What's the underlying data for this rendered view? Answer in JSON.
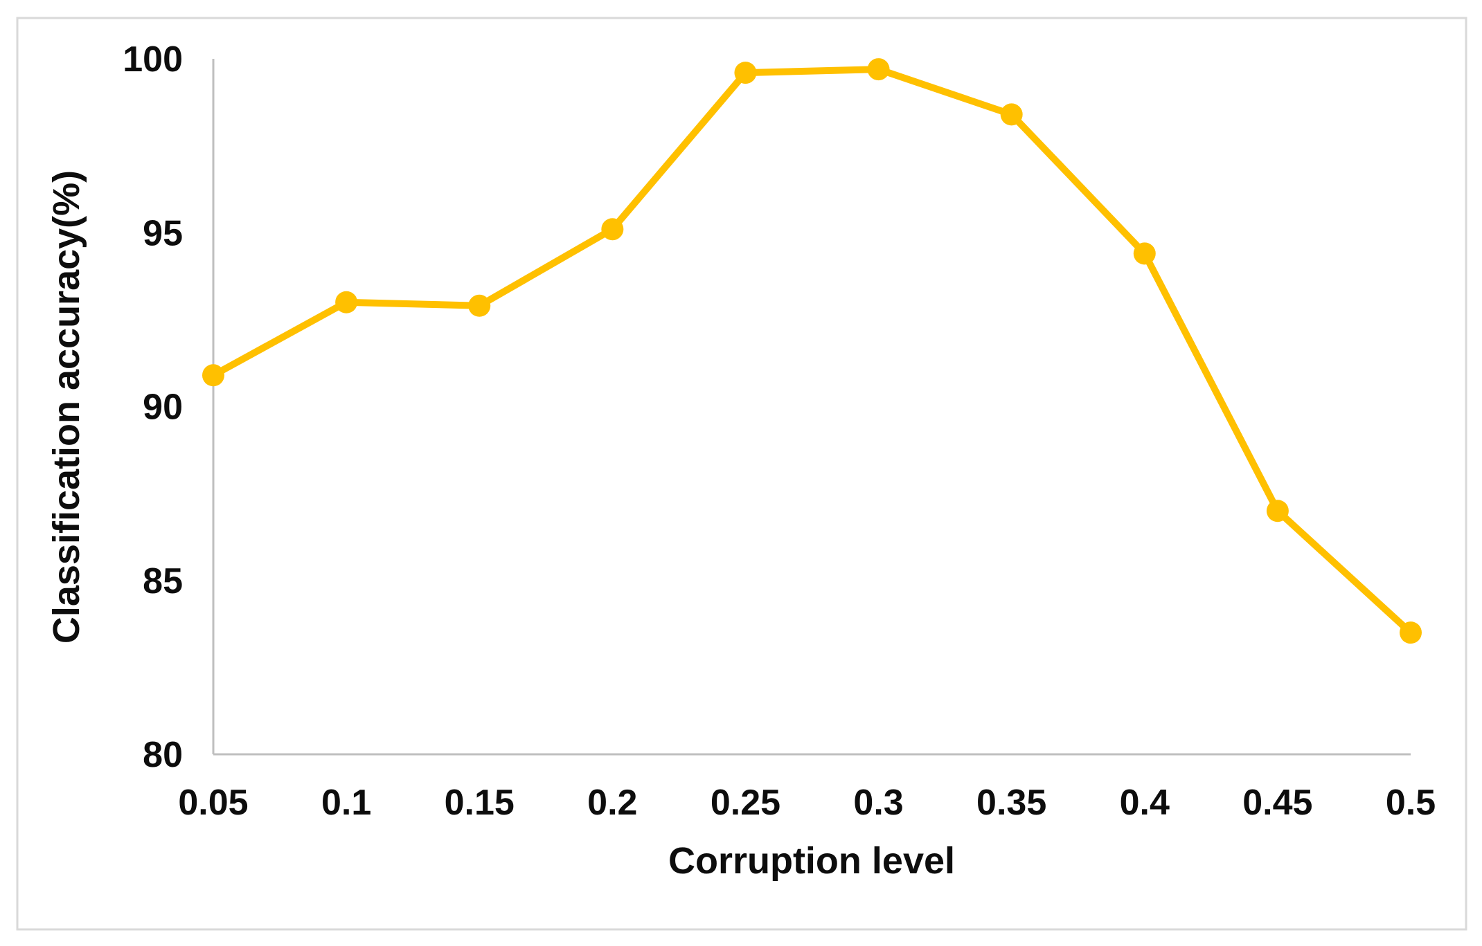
{
  "figure": {
    "background": "#ffffff",
    "border_color": "#d9d9d9"
  },
  "chart_data": {
    "type": "line",
    "title": "",
    "xlabel": "Corruption level",
    "ylabel": "Classification accuracy(%)",
    "categories": [
      "0.05",
      "0.1",
      "0.15",
      "0.2",
      "0.25",
      "0.3",
      "0.35",
      "0.4",
      "0.45",
      "0.5"
    ],
    "values": [
      90.9,
      93.0,
      92.9,
      95.1,
      99.6,
      99.7,
      98.4,
      94.4,
      87.0,
      83.5
    ],
    "ylim": [
      80,
      100
    ],
    "yticks": [
      80,
      85,
      90,
      95,
      100
    ],
    "grid": false,
    "legend": "none",
    "line_color": "#FFC000",
    "marker": "circle",
    "marker_color": "#FFC000",
    "axis_color": "#BFBFBF",
    "text_color": "#0d0d0d"
  }
}
